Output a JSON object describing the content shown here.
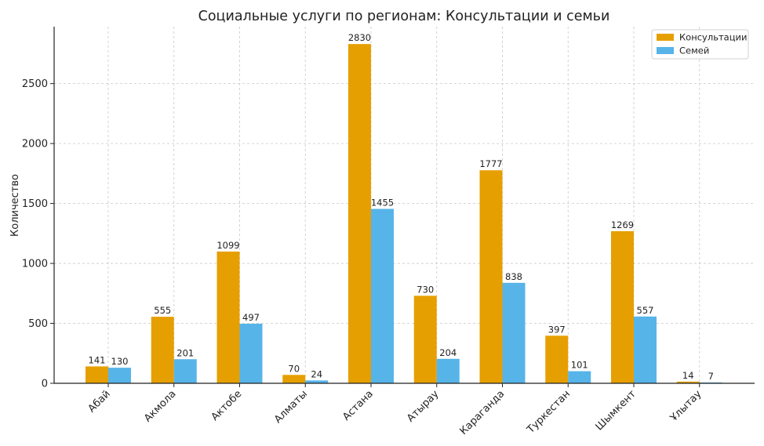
{
  "chart_data": {
    "type": "bar",
    "title": "Социальные услуги по регионам: Консультации и семьи",
    "xlabel": "",
    "ylabel": "Количество",
    "categories": [
      "Абай",
      "Акмола",
      "Актобе",
      "Алматы",
      "Астана",
      "Атырау",
      "Караганда",
      "Туркестан",
      "Шымкент",
      "Ұлытау"
    ],
    "series": [
      {
        "name": "Консультации",
        "color": "#E69F00",
        "values": [
          141,
          555,
          1099,
          70,
          2830,
          730,
          1777,
          397,
          1269,
          14
        ]
      },
      {
        "name": "Семей",
        "color": "#56B4E9",
        "values": [
          130,
          201,
          497,
          24,
          1455,
          204,
          838,
          101,
          557,
          7
        ]
      }
    ],
    "ylim": [
      0,
      2975
    ],
    "yticks": [
      0,
      500,
      1000,
      1500,
      2000,
      2500
    ],
    "grid": true,
    "legend_position": "top-right"
  }
}
